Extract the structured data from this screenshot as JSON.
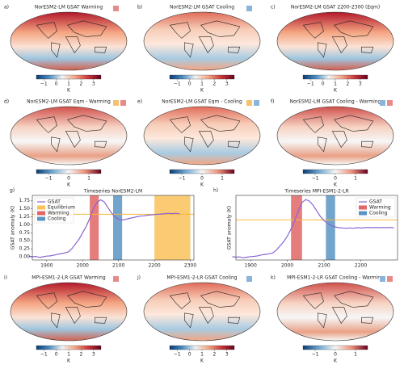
{
  "maps": [
    {
      "label": "a)",
      "title": "NorESM2-LM GSAT Warming",
      "tags": [
        "#e88a8a"
      ],
      "clim": [
        -1.6,
        3.6
      ],
      "cbar_ticks": [
        {
          "value": -1,
          "label": "−1"
        },
        0,
        1,
        2,
        3
      ],
      "cbar_label": "K"
    },
    {
      "label": "b)",
      "title": "NorESM2-LM GSAT Cooling",
      "tags": [
        "#8ab4d8"
      ],
      "clim": [
        -1.6,
        3.6
      ],
      "cbar_ticks": [
        {
          "value": -1,
          "label": "−1"
        },
        0,
        1,
        2,
        3
      ],
      "cbar_label": "K"
    },
    {
      "label": "c)",
      "title": "NorESM2-LM GSAT 2200-2300 (Eqm)",
      "tags": [],
      "clim": [
        -1.6,
        3.6
      ],
      "cbar_ticks": [
        {
          "value": -1,
          "label": "−1"
        },
        0,
        1,
        2,
        3
      ],
      "cbar_label": "K"
    },
    {
      "label": "d)",
      "title": "NorESM2-LM GSAT Eqm - Warming",
      "tags": [
        "#f5c26b",
        "#e88a8a"
      ],
      "clim": [
        -1.6,
        1.6
      ],
      "cbar_ticks": [
        {
          "value": -1,
          "label": "−1"
        },
        0,
        1
      ],
      "cbar_label": "K"
    },
    {
      "label": "e)",
      "title": "NorESM2-LM GSAT Eqm - Cooling",
      "tags": [
        "#f5c26b",
        "#8ab4d8"
      ],
      "clim": [
        -1.6,
        1.6
      ],
      "cbar_ticks": [
        {
          "value": -1,
          "label": "−1"
        },
        0,
        1
      ],
      "cbar_label": "K"
    },
    {
      "label": "f)",
      "title": "NorESM2-LM GSAT Cooling - Warming",
      "tags": [
        "#8ab4d8",
        "#e88a8a"
      ],
      "clim": [
        -1.6,
        1.6
      ],
      "cbar_ticks": [
        {
          "value": -1,
          "label": "−1"
        },
        0,
        1
      ],
      "cbar_label": "K"
    },
    {
      "label": "i)",
      "title": "MPI-ESM1-2-LR GSAT Warming",
      "tags": [
        "#e88a8a"
      ],
      "clim": [
        -1.6,
        3.6
      ],
      "cbar_ticks": [
        {
          "value": -1,
          "label": "−1"
        },
        0,
        1,
        2,
        3
      ],
      "cbar_label": "K"
    },
    {
      "label": "j)",
      "title": "MPI-ESM1-2-LR GSAT Cooling",
      "tags": [
        "#8ab4d8"
      ],
      "clim": [
        -1.6,
        3.6
      ],
      "cbar_ticks": [
        {
          "value": -1,
          "label": "−1"
        },
        0,
        1,
        2,
        3
      ],
      "cbar_label": "K"
    },
    {
      "label": "k)",
      "title": "MPI-ESM1-2-LR GSAT Cooling - Warming",
      "tags": [
        "#8ab4d8",
        "#e88a8a"
      ],
      "clim": [
        -1.6,
        1.6
      ],
      "cbar_ticks": [
        {
          "value": -1,
          "label": "−1"
        },
        0,
        1
      ],
      "cbar_label": "K"
    }
  ],
  "chart_data": [
    {
      "type": "line",
      "label": "g)",
      "title": "Timeseries NorESM2-LM",
      "ylabel": "GSAT anomaly (K)",
      "legend": "upper left",
      "x": [
        1850,
        1860,
        1870,
        1880,
        1890,
        1900,
        1910,
        1920,
        1930,
        1940,
        1950,
        1960,
        1970,
        1980,
        1990,
        2000,
        2010,
        2020,
        2030,
        2040,
        2050,
        2060,
        2070,
        2080,
        2090,
        2100,
        2110,
        2120,
        2130,
        2140,
        2150,
        2160,
        2170,
        2180,
        2190,
        2200,
        2210,
        2220,
        2230,
        2240,
        2250,
        2260,
        2270
      ],
      "series": [
        {
          "name": "GSAT",
          "color": "#8a63d2",
          "values": [
            0.02,
            0.0,
            0.01,
            -0.02,
            0.0,
            0.02,
            0.03,
            0.05,
            0.08,
            0.1,
            0.12,
            0.15,
            0.25,
            0.4,
            0.55,
            0.75,
            0.95,
            1.2,
            1.5,
            1.7,
            1.78,
            1.72,
            1.55,
            1.38,
            1.25,
            1.18,
            1.15,
            1.17,
            1.2,
            1.22,
            1.25,
            1.27,
            1.28,
            1.3,
            1.31,
            1.32,
            1.33,
            1.34,
            1.35,
            1.36,
            1.35,
            1.36,
            1.35
          ]
        }
      ],
      "hline": 1.33,
      "hline_color": "#f5b83d",
      "spans": [
        {
          "name": "Equilibrium",
          "color": "#f9c25a",
          "x": [
            2200,
            2300
          ]
        },
        {
          "name": "Warming",
          "color": "#e06666",
          "x": [
            2020,
            2045
          ]
        },
        {
          "name": "Cooling",
          "color": "#5b94c2",
          "x": [
            2085,
            2110
          ]
        }
      ],
      "xlim": [
        1860,
        2310
      ],
      "ylim": [
        -0.1,
        1.92
      ],
      "xticks": [
        1900,
        2000,
        2100,
        2200,
        2300
      ],
      "yticks": [
        {
          "value": 0,
          "label": "0.00"
        },
        {
          "value": 0.25,
          "label": "0.25"
        },
        {
          "value": 0.5,
          "label": "0.50"
        },
        {
          "value": 0.75,
          "label": "0.75"
        },
        {
          "value": 1,
          "label": "1.00"
        },
        {
          "value": 1.25,
          "label": "1.25"
        },
        {
          "value": 1.5,
          "label": "1.50"
        },
        {
          "value": 1.75,
          "label": "1.75"
        }
      ]
    },
    {
      "type": "line",
      "label": "h)",
      "title": "Timeseries MPI-ESM1-2-LR",
      "ylabel": "GSAT anomaly (K)",
      "legend": "upper right",
      "x": [
        1850,
        1860,
        1870,
        1880,
        1890,
        1900,
        1910,
        1920,
        1930,
        1940,
        1950,
        1960,
        1970,
        1980,
        1990,
        2000,
        2010,
        2020,
        2030,
        2040,
        2050,
        2060,
        2070,
        2080,
        2090,
        2100,
        2110,
        2120,
        2130,
        2140,
        2150,
        2160,
        2170,
        2180,
        2190,
        2200,
        2210,
        2220,
        2230,
        2240,
        2250,
        2260,
        2270,
        2280,
        2290
      ],
      "series": [
        {
          "name": "GSAT",
          "color": "#8a63d2",
          "values": [
            0.02,
            0.0,
            0.01,
            -0.02,
            0.0,
            0.02,
            0.03,
            0.05,
            0.08,
            0.1,
            0.12,
            0.15,
            0.25,
            0.4,
            0.55,
            0.75,
            1.0,
            1.3,
            1.65,
            1.95,
            2.05,
            2.0,
            1.85,
            1.65,
            1.45,
            1.3,
            1.2,
            1.12,
            1.08,
            1.05,
            1.04,
            1.03,
            1.04,
            1.03,
            1.05,
            1.04,
            1.05,
            1.06,
            1.05,
            1.06,
            1.05,
            1.06,
            1.05,
            1.06,
            1.05
          ]
        }
      ],
      "hline": 1.33,
      "hline_color": "#f5b83d",
      "spans": [
        {
          "name": "Warming",
          "color": "#e06666",
          "x": [
            2010,
            2040
          ]
        },
        {
          "name": "Cooling",
          "color": "#5b94c2",
          "x": [
            2105,
            2130
          ]
        }
      ],
      "xlim": [
        1860,
        2300
      ],
      "ylim": [
        -0.1,
        2.2
      ],
      "xticks": [
        1900,
        2000,
        2100,
        2200
      ]
    }
  ]
}
